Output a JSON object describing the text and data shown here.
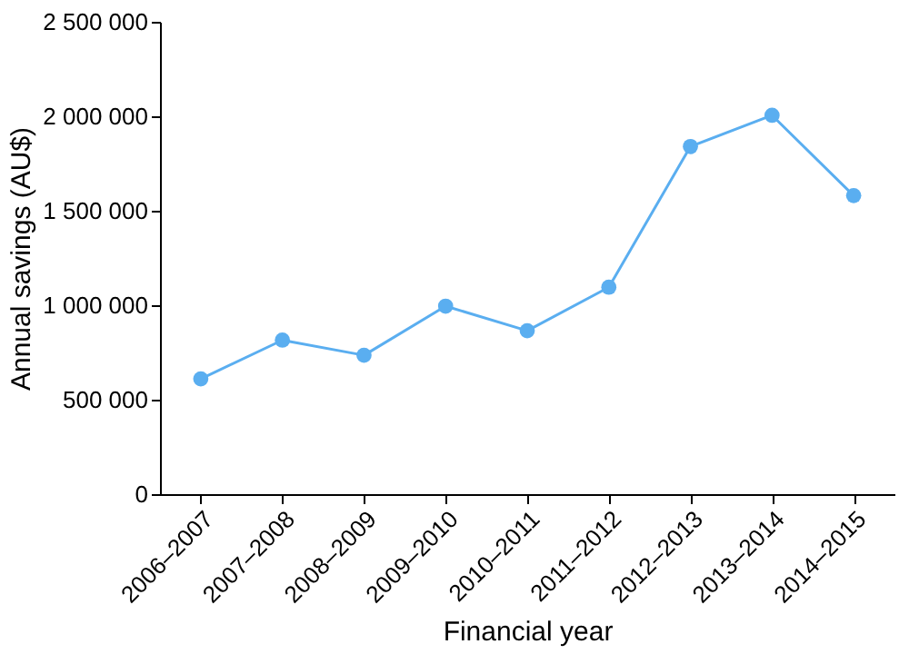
{
  "chart_data": {
    "type": "line",
    "xlabel": "Financial year",
    "ylabel": "Annual savings (AU$)",
    "categories": [
      "2006–2007",
      "2007–2008",
      "2008–2009",
      "2009–2010",
      "2010–2011",
      "2011–2012",
      "2012–2013",
      "2013–2014",
      "2014–2015"
    ],
    "series": [
      {
        "color": "#5aaef0",
        "values": [
          610000,
          815000,
          735000,
          995000,
          865000,
          1095000,
          1840000,
          2005000,
          1580000
        ]
      }
    ],
    "ylim": [
      0,
      2500000
    ],
    "yticks": [
      0,
      {
        "value": 500000,
        "label": "500 000"
      },
      {
        "value": 1000000,
        "label": "1 000 000"
      },
      {
        "value": 1500000,
        "label": "1 500 000"
      },
      {
        "value": 2000000,
        "label": "2 000 000"
      },
      {
        "value": 2500000,
        "label": "2 500 000"
      }
    ],
    "grid": false,
    "legend": false,
    "marker": "circle",
    "line_style": "solid"
  }
}
